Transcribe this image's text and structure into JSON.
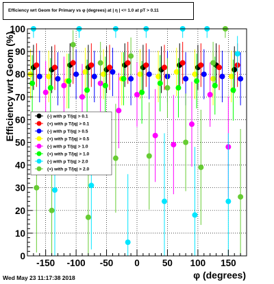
{
  "plot_title": "Efficiency wrt Geom for Primary vs φ (degrees) at | η | <= 1.0 at pT > 0.11",
  "footer": "Wed May 23 11:17:38 2018",
  "chart_data": {
    "type": "scatter",
    "title": "Efficiency wrt Geom for Primary vs φ (degrees) at | η | <= 1.0 at pT > 0.11",
    "xlabel": "φ (degrees)",
    "ylabel": "Efficiency wrt Geom (%)",
    "xlim": [
      -180,
      180
    ],
    "ylim": [
      0,
      100
    ],
    "x_ticks": [
      -150,
      -100,
      -50,
      0,
      50,
      100,
      150
    ],
    "y_ticks": [
      0,
      10,
      20,
      30,
      40,
      50,
      60,
      70,
      80,
      90,
      100
    ],
    "grid": true,
    "legend_position": "left-middle",
    "series": [
      {
        "name": "(-) with p T/|q| > 0.1",
        "color": "#000000",
        "marker": "circle",
        "x": [
          -170,
          -140,
          -110,
          -80,
          -50,
          -20,
          10,
          40,
          70,
          100,
          130,
          160
        ],
        "y": [
          83,
          82,
          84,
          83,
          82,
          84,
          83,
          82,
          84,
          83,
          84,
          82
        ]
      },
      {
        "name": "(+) with p T/|q| > 0.1",
        "color": "#ff0000",
        "marker": "circle",
        "x": [
          -165,
          -135,
          -105,
          -75,
          -45,
          -15,
          15,
          45,
          75,
          105,
          135,
          165
        ],
        "y": [
          84,
          83,
          85,
          84,
          83,
          85,
          84,
          83,
          85,
          84,
          83,
          84
        ]
      },
      {
        "name": "(-) with p T/|q| > 0.5",
        "color": "#0000ff",
        "marker": "circle",
        "x": [
          -160,
          -130,
          -100,
          -70,
          -40,
          -10,
          20,
          50,
          80,
          110,
          140,
          170
        ],
        "y": [
          79,
          78,
          80,
          79,
          81,
          78,
          80,
          79,
          78,
          80,
          79,
          78
        ]
      },
      {
        "name": "(+) with p T/|q| > 0.5",
        "color": "#ffff00",
        "marker": "circle",
        "x": [
          -175,
          -145,
          -115,
          -85,
          -55,
          -25,
          5,
          35,
          65,
          95,
          125,
          155
        ],
        "y": [
          80,
          79,
          77,
          81,
          80,
          78,
          80,
          79,
          81,
          80,
          78,
          79
        ]
      },
      {
        "name": "(-) with p T/|q| > 1.0",
        "color": "#ff00ff",
        "marker": "circle",
        "x": [
          -150,
          -120,
          -90,
          -60,
          -30,
          0,
          30,
          60,
          90,
          120,
          150
        ],
        "y": [
          72,
          75,
          70,
          76,
          64,
          71,
          53,
          49,
          58,
          71,
          48
        ]
      },
      {
        "name": "(+) with p T/|q| > 1.0",
        "color": "#00ff00",
        "marker": "circle",
        "x": [
          -172,
          -142,
          -112,
          -82,
          -52,
          -22,
          8,
          38,
          68,
          98,
          128,
          158
        ],
        "y": [
          76,
          74,
          77,
          73,
          75,
          78,
          72,
          76,
          74,
          77,
          75,
          73
        ]
      },
      {
        "name": "(-) with p T/|q| > 2.0",
        "color": "#00e5ff",
        "marker": "circle",
        "x": [
          -170,
          -135,
          -95,
          -75,
          -35,
          -15,
          15,
          45,
          75,
          95,
          115,
          150,
          165
        ],
        "y": [
          100,
          29,
          100,
          31,
          100,
          6,
          100,
          24,
          100,
          18,
          100,
          24,
          89
        ]
      },
      {
        "name": "(+) with p T/|q| > 2.0",
        "color": "#66cc33",
        "marker": "circle",
        "x": [
          -165,
          -140,
          -105,
          -80,
          -60,
          -35,
          -10,
          20,
          50,
          80,
          105,
          125,
          145,
          170
        ],
        "y": [
          30,
          20,
          93,
          17,
          85,
          43,
          88,
          44,
          74,
          50,
          39,
          85,
          100,
          26
        ]
      }
    ]
  }
}
